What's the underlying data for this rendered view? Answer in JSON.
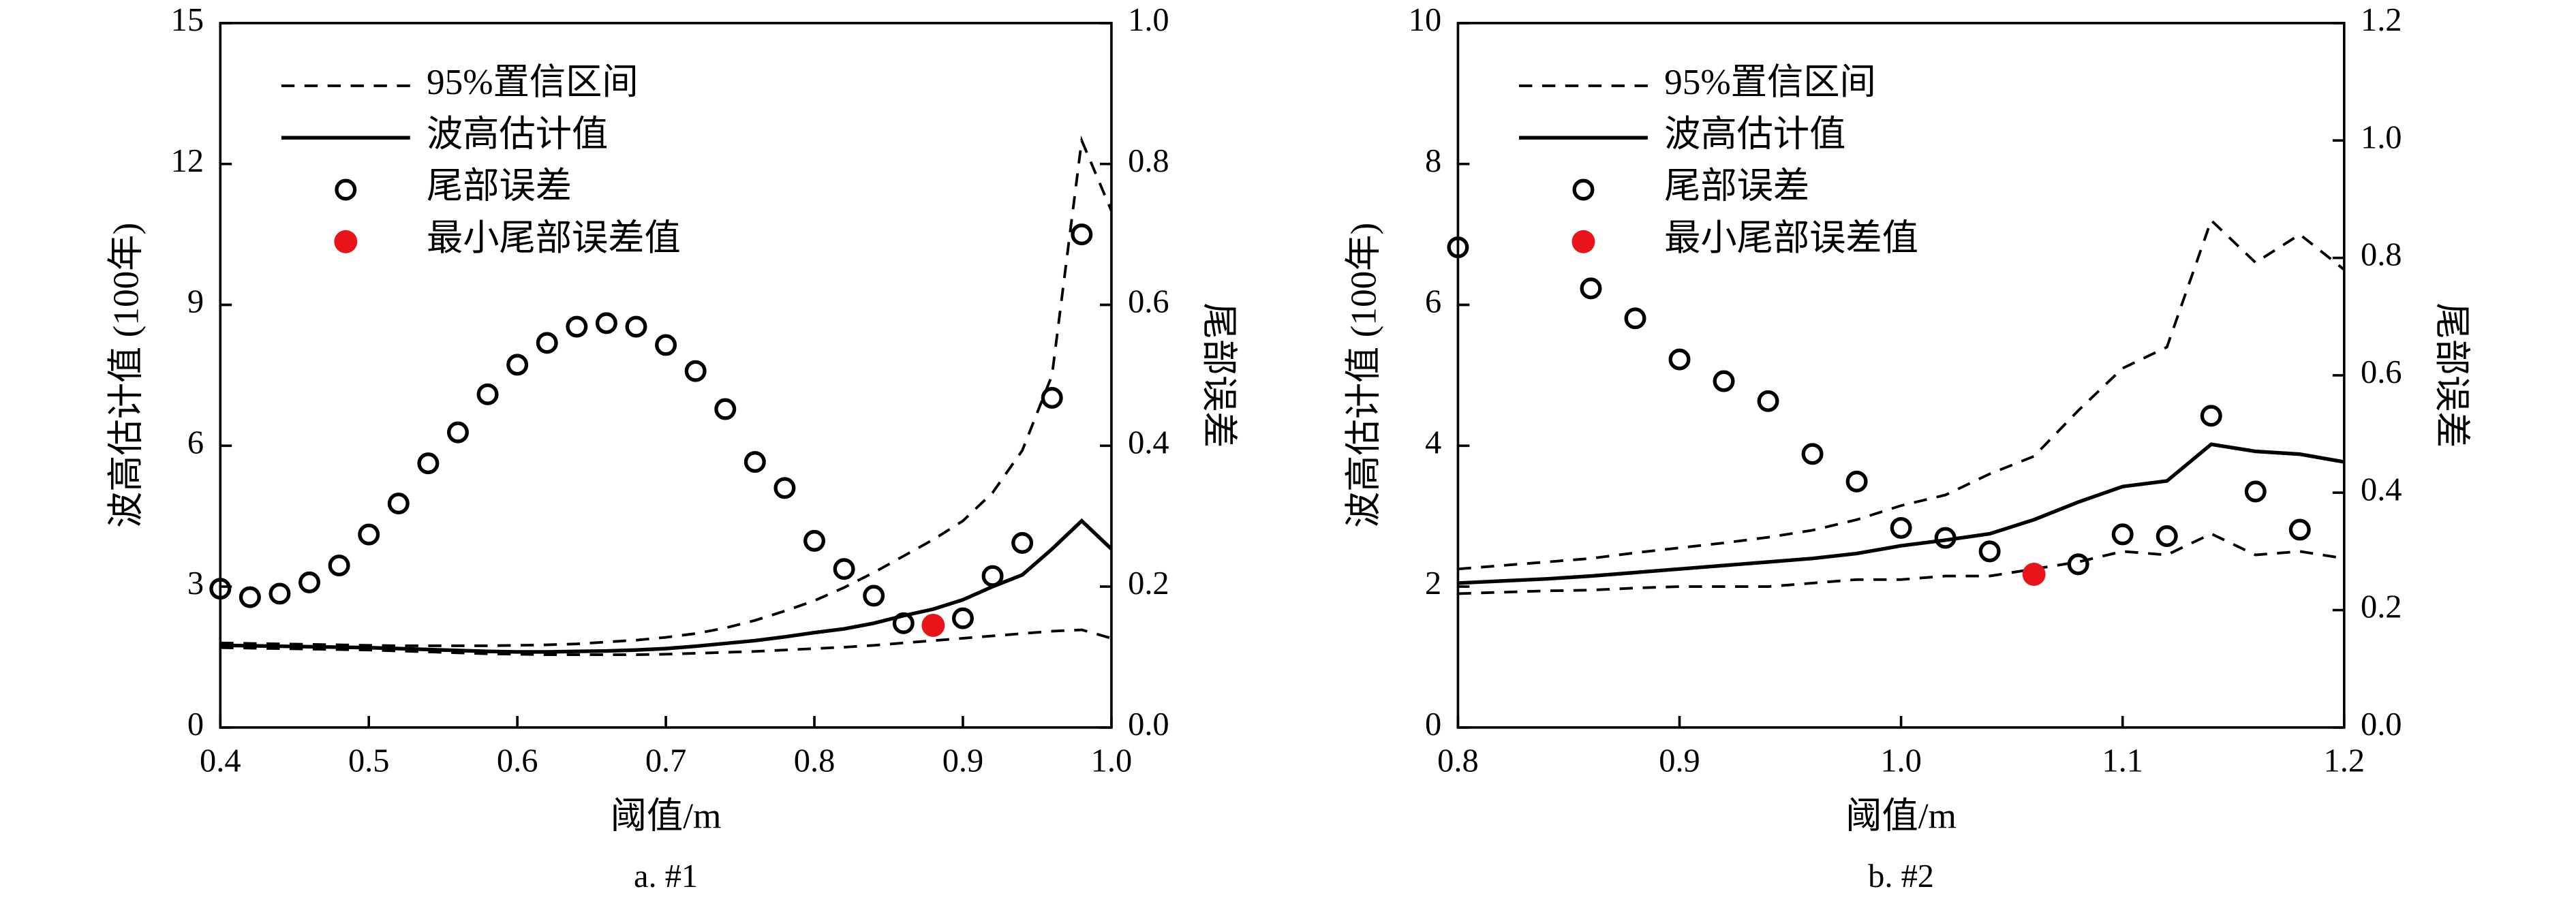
{
  "chart_data": [
    {
      "type": "line",
      "caption": "a. #1",
      "xlabel": "阈值/m",
      "ylabel": "波高估计值 (100年)",
      "y2label": "尾部误差",
      "xlim": [
        0.4,
        1.0
      ],
      "xticks": [
        0.4,
        0.5,
        0.6,
        0.7,
        0.8,
        0.9,
        {
          "value": 1.0,
          "label": "1.0"
        }
      ],
      "ylim": [
        0,
        15
      ],
      "yticks": [
        0,
        3,
        6,
        9,
        12,
        15
      ],
      "y2lim": [
        0,
        1.0
      ],
      "y2ticks": [
        {
          "value": 0,
          "label": "0.0"
        },
        0.2,
        0.4,
        0.6,
        0.8,
        {
          "value": 1.0,
          "label": "1.0"
        }
      ],
      "x": [
        0.4,
        0.42,
        0.44,
        0.46,
        0.48,
        0.5,
        0.52,
        0.54,
        0.56,
        0.58,
        0.6,
        0.62,
        0.64,
        0.66,
        0.68,
        0.7,
        0.72,
        0.74,
        0.76,
        0.78,
        0.8,
        0.82,
        0.84,
        0.86,
        0.88,
        0.9,
        0.92,
        0.94,
        0.96,
        0.98,
        1.0
      ],
      "series": [
        {
          "name": "95%置信区间",
          "color": "#000000",
          "style": "dashed",
          "values": [
            1.8,
            1.79,
            1.78,
            1.77,
            1.76,
            1.75,
            1.74,
            1.74,
            1.74,
            1.74,
            1.75,
            1.76,
            1.78,
            1.82,
            1.86,
            1.92,
            2.0,
            2.12,
            2.28,
            2.48,
            2.7,
            2.98,
            3.3,
            3.65,
            4.0,
            4.4,
            5.0,
            5.9,
            7.5,
            12.5,
            11.0
          ],
          "lower": [
            1.7,
            1.69,
            1.68,
            1.67,
            1.66,
            1.65,
            1.63,
            1.61,
            1.59,
            1.57,
            1.56,
            1.55,
            1.55,
            1.55,
            1.55,
            1.56,
            1.58,
            1.6,
            1.62,
            1.65,
            1.68,
            1.71,
            1.75,
            1.8,
            1.85,
            1.9,
            1.95,
            2.0,
            2.05,
            2.08,
            1.9
          ]
        },
        {
          "name": "波高估计值",
          "color": "#000000",
          "style": "solid",
          "values": [
            1.75,
            1.74,
            1.73,
            1.72,
            1.71,
            1.7,
            1.68,
            1.66,
            1.64,
            1.62,
            1.61,
            1.61,
            1.62,
            1.63,
            1.65,
            1.68,
            1.73,
            1.79,
            1.85,
            1.93,
            2.02,
            2.1,
            2.22,
            2.38,
            2.52,
            2.72,
            3.0,
            3.25,
            3.8,
            4.4,
            3.8
          ]
        },
        {
          "name": "尾部误差",
          "color": "#000000",
          "style": "open-circle",
          "axis": "y2",
          "values": [
            0.197,
            0.185,
            0.19,
            0.206,
            0.23,
            0.274,
            0.318,
            0.375,
            0.419,
            0.473,
            0.515,
            0.546,
            0.569,
            0.574,
            0.569,
            0.543,
            0.506,
            0.452,
            0.377,
            0.34,
            0.265,
            0.225,
            0.187,
            0.148,
            null,
            0.155,
            0.215,
            0.262,
            0.468,
            0.7,
            null
          ]
        },
        {
          "name": "最小尾部误差值",
          "color": "#e8141a",
          "style": "dot",
          "axis": "y2",
          "values": [
            null,
            null,
            null,
            null,
            null,
            null,
            null,
            null,
            null,
            null,
            null,
            null,
            null,
            null,
            null,
            null,
            null,
            null,
            null,
            null,
            null,
            null,
            null,
            null,
            0.145,
            null,
            null,
            null,
            null,
            null,
            null
          ]
        }
      ]
    },
    {
      "type": "line",
      "caption": "b. #2",
      "xlabel": "阈值/m",
      "ylabel": "波高估计值 (100年)",
      "y2label": "尾部误差",
      "xlim": [
        0.8,
        1.2
      ],
      "xticks": [
        0.8,
        0.9,
        {
          "value": 1.0,
          "label": "1.0"
        },
        1.1,
        1.2
      ],
      "ylim": [
        0,
        10
      ],
      "yticks": [
        0,
        2,
        4,
        6,
        8,
        10
      ],
      "y2lim": [
        0,
        1.2
      ],
      "y2ticks": [
        {
          "value": 0,
          "label": "0.0"
        },
        0.2,
        0.4,
        0.6,
        0.8,
        {
          "value": 1.0,
          "label": "1.0"
        },
        1.2
      ],
      "x": [
        0.8,
        0.82,
        0.84,
        0.86,
        0.88,
        0.9,
        0.92,
        0.94,
        0.96,
        0.98,
        1.0,
        1.02,
        1.04,
        1.06,
        1.08,
        1.1,
        1.12,
        1.14,
        1.16,
        1.18,
        1.2
      ],
      "series": [
        {
          "name": "95%置信区间",
          "color": "#000000",
          "style": "dashed",
          "values": [
            2.25,
            2.3,
            2.35,
            2.4,
            2.48,
            2.55,
            2.62,
            2.7,
            2.8,
            2.95,
            3.15,
            3.3,
            3.6,
            3.85,
            4.5,
            5.1,
            5.4,
            7.2,
            6.6,
            7.0,
            6.5
          ],
          "lower": [
            1.9,
            1.92,
            1.94,
            1.95,
            1.98,
            2.0,
            2.0,
            2.0,
            2.05,
            2.1,
            2.1,
            2.15,
            2.15,
            2.25,
            2.35,
            2.5,
            2.45,
            2.75,
            2.45,
            2.5,
            2.4
          ]
        },
        {
          "name": "波高估计值",
          "color": "#000000",
          "style": "solid",
          "values": [
            2.05,
            2.08,
            2.11,
            2.15,
            2.2,
            2.25,
            2.3,
            2.35,
            2.4,
            2.47,
            2.58,
            2.66,
            2.75,
            2.95,
            3.2,
            3.42,
            3.5,
            4.02,
            3.92,
            3.88,
            3.77
          ]
        },
        {
          "name": "尾部误差",
          "color": "#000000",
          "style": "open-circle",
          "axis": "y2",
          "values": [
            0.818,
            null,
            null,
            0.748,
            0.697,
            0.627,
            0.59,
            0.556,
            0.466,
            0.419,
            0.34,
            0.323,
            0.3,
            null,
            0.278,
            0.329,
            0.326,
            0.531,
            0.402,
            0.337,
            null
          ]
        },
        {
          "name": "最小尾部误差值",
          "color": "#e8141a",
          "style": "dot",
          "axis": "y2",
          "values": [
            null,
            null,
            null,
            null,
            null,
            null,
            null,
            null,
            null,
            null,
            null,
            null,
            null,
            0.261,
            null,
            null,
            null,
            null,
            null,
            null,
            null
          ]
        }
      ]
    }
  ]
}
